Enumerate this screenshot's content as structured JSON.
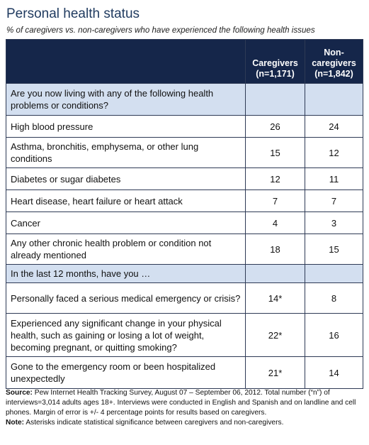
{
  "title": "Personal health status",
  "subtitle": "% of caregivers vs. non-caregivers who have experienced the following health issues",
  "chart_data": {
    "type": "table",
    "columns": [
      {
        "name": "Caregivers",
        "n": "(n=1,171)"
      },
      {
        "name": "Non-caregivers",
        "name_line1": "Non-",
        "name_line2": "caregivers",
        "n": "(n=1,842)"
      }
    ],
    "rows": [
      {
        "kind": "section",
        "label": "Are you now living with any of the following health problems or conditions?",
        "caregivers": "",
        "noncaregivers": ""
      },
      {
        "kind": "data",
        "label": "High blood pressure",
        "caregivers": "26",
        "noncaregivers": "24"
      },
      {
        "kind": "data",
        "label": "Asthma, bronchitis, emphysema, or other lung conditions",
        "caregivers": "15",
        "noncaregivers": "12"
      },
      {
        "kind": "data",
        "label": "Diabetes or sugar diabetes",
        "caregivers": "12",
        "noncaregivers": "11"
      },
      {
        "kind": "data",
        "label": "Heart disease, heart failure or heart attack",
        "caregivers": "7",
        "noncaregivers": "7"
      },
      {
        "kind": "data",
        "label": "Cancer",
        "caregivers": "4",
        "noncaregivers": "3"
      },
      {
        "kind": "data",
        "label": "Any other chronic health problem or condition not already mentioned",
        "caregivers": "18",
        "noncaregivers": "15"
      },
      {
        "kind": "section",
        "label": "In the last 12 months, have you …",
        "caregivers": "",
        "noncaregivers": ""
      },
      {
        "kind": "data",
        "label": "Personally faced a serious medical emergency or crisis?",
        "caregivers": "14*",
        "noncaregivers": "8"
      },
      {
        "kind": "data",
        "label": "Experienced any significant change in your physical health, such as gaining or losing a lot of weight, becoming pregnant, or quitting smoking?",
        "caregivers": "22*",
        "noncaregivers": "16"
      },
      {
        "kind": "data",
        "label": "Gone to the emergency room or been hospitalized unexpectedly",
        "caregivers": "21*",
        "noncaregivers": "14"
      }
    ]
  },
  "footnote": {
    "source_label": "Source:",
    "source_text": "Pew Internet Health Tracking Survey, August 07 – September 06, 2012. Total number (“n”) of interviews=3,014 adults ages 18+. Interviews were conducted in English and Spanish and on landline and cell phones.  Margin of error is +/- 4 percentage points for results based on caregivers.",
    "note_label": "Note:",
    "note_text": "Asterisks indicate statistical significance between caregivers and non-caregivers."
  }
}
